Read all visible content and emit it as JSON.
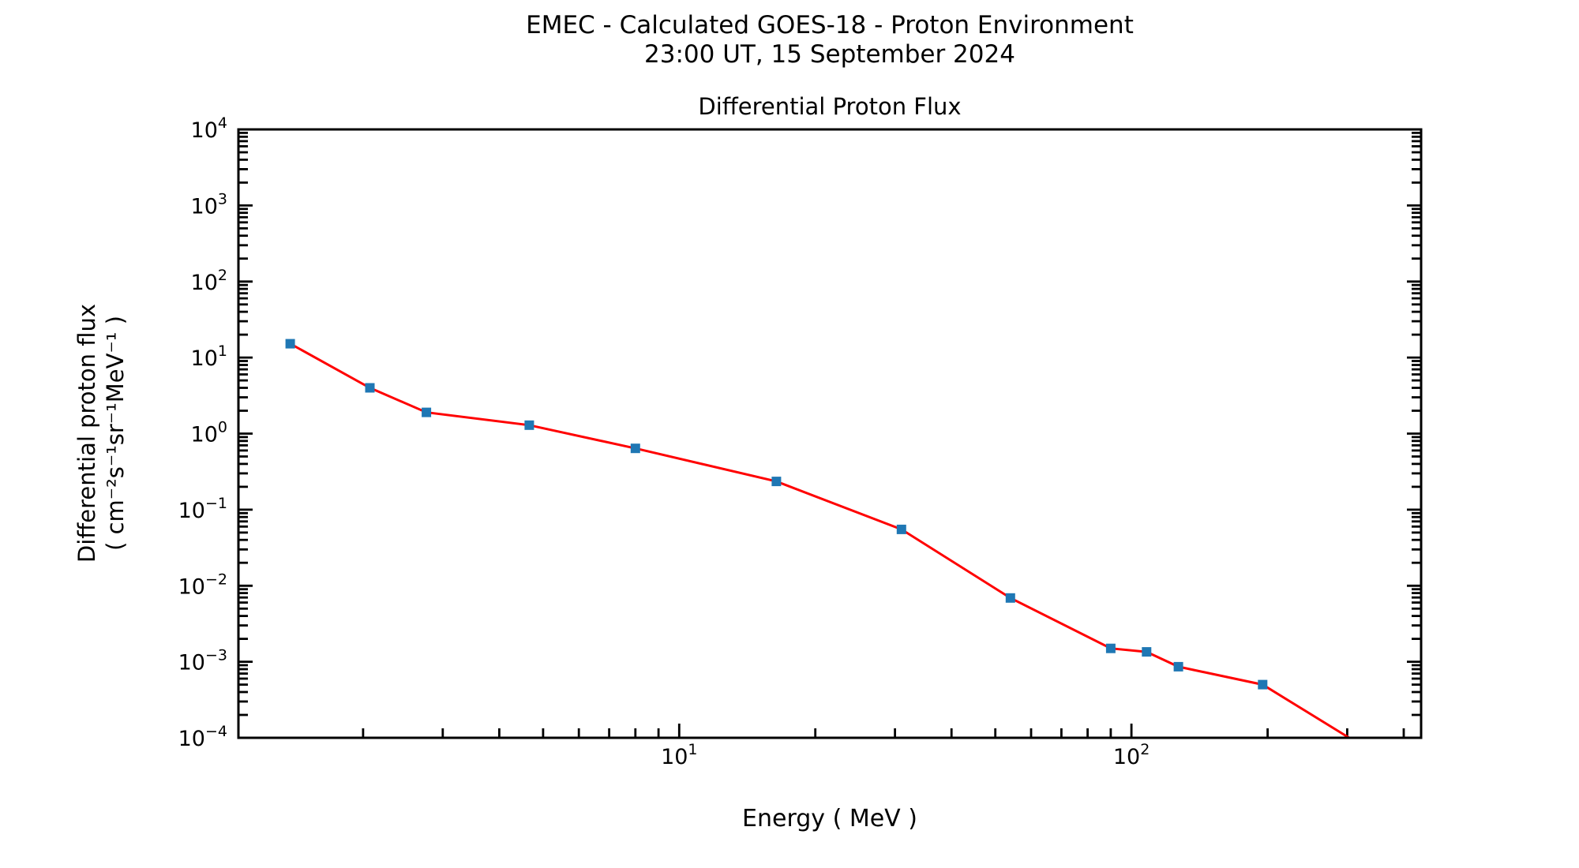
{
  "header": {
    "suptitle_line1": "EMEC - Calculated GOES-18 - Proton Environment",
    "suptitle_line2": "23:00 UT, 15 September 2024"
  },
  "chart_data": {
    "type": "line",
    "scale": "log-log",
    "title": "Differential Proton Flux",
    "xlabel": "Energy ( MeV )",
    "ylabel_line1": "Differential proton flux",
    "ylabel_line2": "( cm⁻²s⁻¹sr⁻¹MeV⁻¹ )",
    "xlim": [
      1.06,
      437
    ],
    "ylim": [
      0.0001,
      10000
    ],
    "x_major_ticks": [
      10,
      100
    ],
    "x_tick_exponents": [
      1,
      2
    ],
    "x_tick_labels": [
      "10¹",
      "10²"
    ],
    "y_tick_exponents": [
      4,
      3,
      2,
      1,
      0,
      -1,
      -2,
      -3,
      -4
    ],
    "y_tick_labels": [
      "10⁴",
      "10³",
      "10²",
      "10¹",
      "10⁰",
      "10⁻¹",
      "10⁻²",
      "10⁻³",
      "10⁻⁴"
    ],
    "grid": false,
    "legend": false,
    "series": [
      {
        "name": "Differential proton flux",
        "x": [
          1.38,
          2.07,
          2.76,
          4.66,
          8.0,
          16.4,
          31,
          54,
          90,
          108,
          127,
          195,
          334
        ],
        "y": [
          15.2,
          4.0,
          1.9,
          1.29,
          0.64,
          0.235,
          0.055,
          0.0069,
          0.0015,
          0.00135,
          0.00086,
          0.0005,
          7e-05
        ],
        "line_color": "#ff0000",
        "marker": "square",
        "marker_color": "#1f77b4"
      }
    ]
  }
}
